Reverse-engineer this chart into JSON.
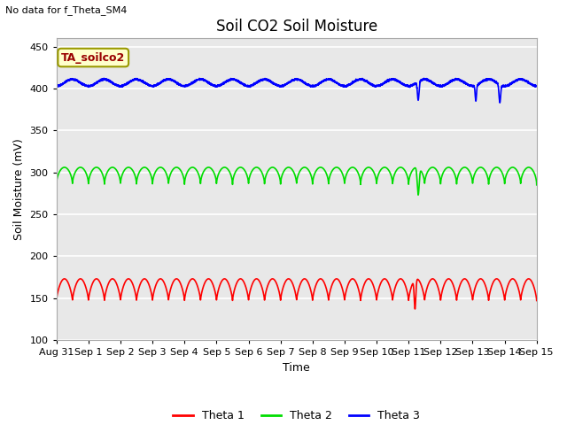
{
  "title": "Soil CO2 Soil Moisture",
  "xlabel": "Time",
  "ylabel": "Soil Moisture (mV)",
  "no_data_text": "No data for f_Theta_SM4",
  "annotation_text": "TA_soilco2",
  "ylim": [
    100,
    460
  ],
  "yticks": [
    100,
    150,
    200,
    250,
    300,
    350,
    400,
    450
  ],
  "x_tick_labels": [
    "Aug 31",
    "Sep 1",
    "Sep 2",
    "Sep 3",
    "Sep 4",
    "Sep 5",
    "Sep 6",
    "Sep 7",
    "Sep 8",
    "Sep 9",
    "Sep 10",
    "Sep 11",
    "Sep 12",
    "Sep 13",
    "Sep 14",
    "Sep 15"
  ],
  "fig_bg_color": "#ffffff",
  "plot_bg_color": "#e8e8e8",
  "grid_color": "#ffffff",
  "theta1_color": "#ff0000",
  "theta2_color": "#00dd00",
  "theta3_color": "#0000ff",
  "legend_labels": [
    "Theta 1",
    "Theta 2",
    "Theta 3"
  ],
  "total_days": 15,
  "theta1_base": 147,
  "theta1_peak": 173,
  "theta2_base": 285,
  "theta2_peak": 306,
  "theta3_base": 403,
  "theta3_amp": 8,
  "annotation_color": "#990000",
  "annotation_bg": "#ffffcc",
  "annotation_edge": "#999900"
}
